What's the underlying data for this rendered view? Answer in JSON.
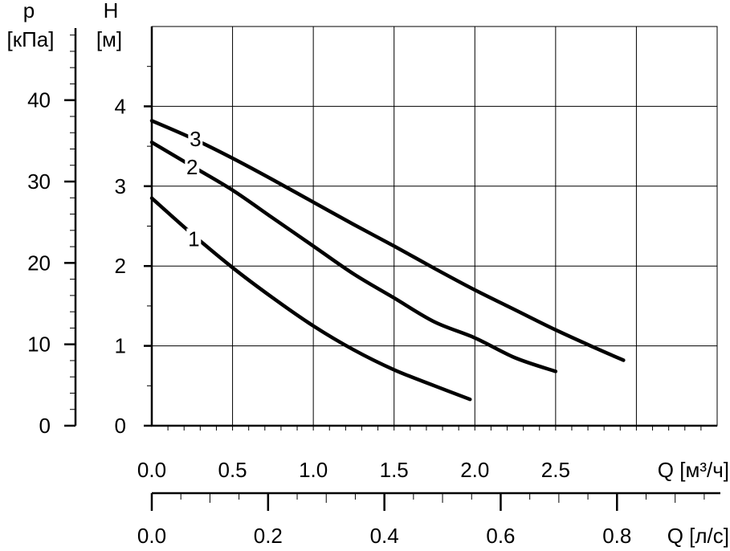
{
  "chart_data": {
    "type": "line",
    "left_axis_symbol": "p",
    "left_axis_unit": "[кПа]",
    "left_axis_ticks": [
      "0",
      "10",
      "20",
      "30",
      "40"
    ],
    "y_symbol": "H",
    "y_unit": "[м]",
    "y_ticks": [
      "0",
      "1",
      "2",
      "3",
      "4"
    ],
    "ylim": [
      0,
      5
    ],
    "xlim": [
      0,
      3.5
    ],
    "x_ticks": [
      "0.0",
      "0.5",
      "1.0",
      "1.5",
      "2.0",
      "2.5"
    ],
    "xlabel": "Q [м³/ч]",
    "x2_ticks": [
      "0.0",
      "0.2",
      "0.4",
      "0.6",
      "0.8"
    ],
    "x2label": "Q [л/с]",
    "series": [
      {
        "name": "1",
        "x": [
          0,
          0.25,
          0.5,
          0.75,
          1.0,
          1.25,
          1.5,
          1.75,
          1.97
        ],
        "y": [
          2.85,
          2.4,
          1.98,
          1.6,
          1.25,
          0.95,
          0.7,
          0.5,
          0.33
        ]
      },
      {
        "name": "2",
        "x": [
          0,
          0.25,
          0.5,
          0.75,
          1.0,
          1.25,
          1.5,
          1.75,
          2.0,
          2.25,
          2.5
        ],
        "y": [
          3.55,
          3.25,
          2.95,
          2.6,
          2.25,
          1.9,
          1.6,
          1.3,
          1.1,
          0.85,
          0.68
        ]
      },
      {
        "name": "3",
        "x": [
          0,
          0.25,
          0.5,
          0.75,
          1.0,
          1.25,
          1.5,
          1.75,
          2.0,
          2.25,
          2.5,
          2.75,
          2.92
        ],
        "y": [
          3.82,
          3.6,
          3.35,
          3.08,
          2.8,
          2.52,
          2.25,
          1.97,
          1.7,
          1.45,
          1.2,
          0.97,
          0.82
        ]
      }
    ],
    "curve_labels": [
      {
        "text": "3",
        "x": 0.27,
        "y": 3.6
      },
      {
        "text": "2",
        "x": 0.25,
        "y": 3.25
      },
      {
        "text": "1",
        "x": 0.26,
        "y": 2.35
      }
    ]
  }
}
